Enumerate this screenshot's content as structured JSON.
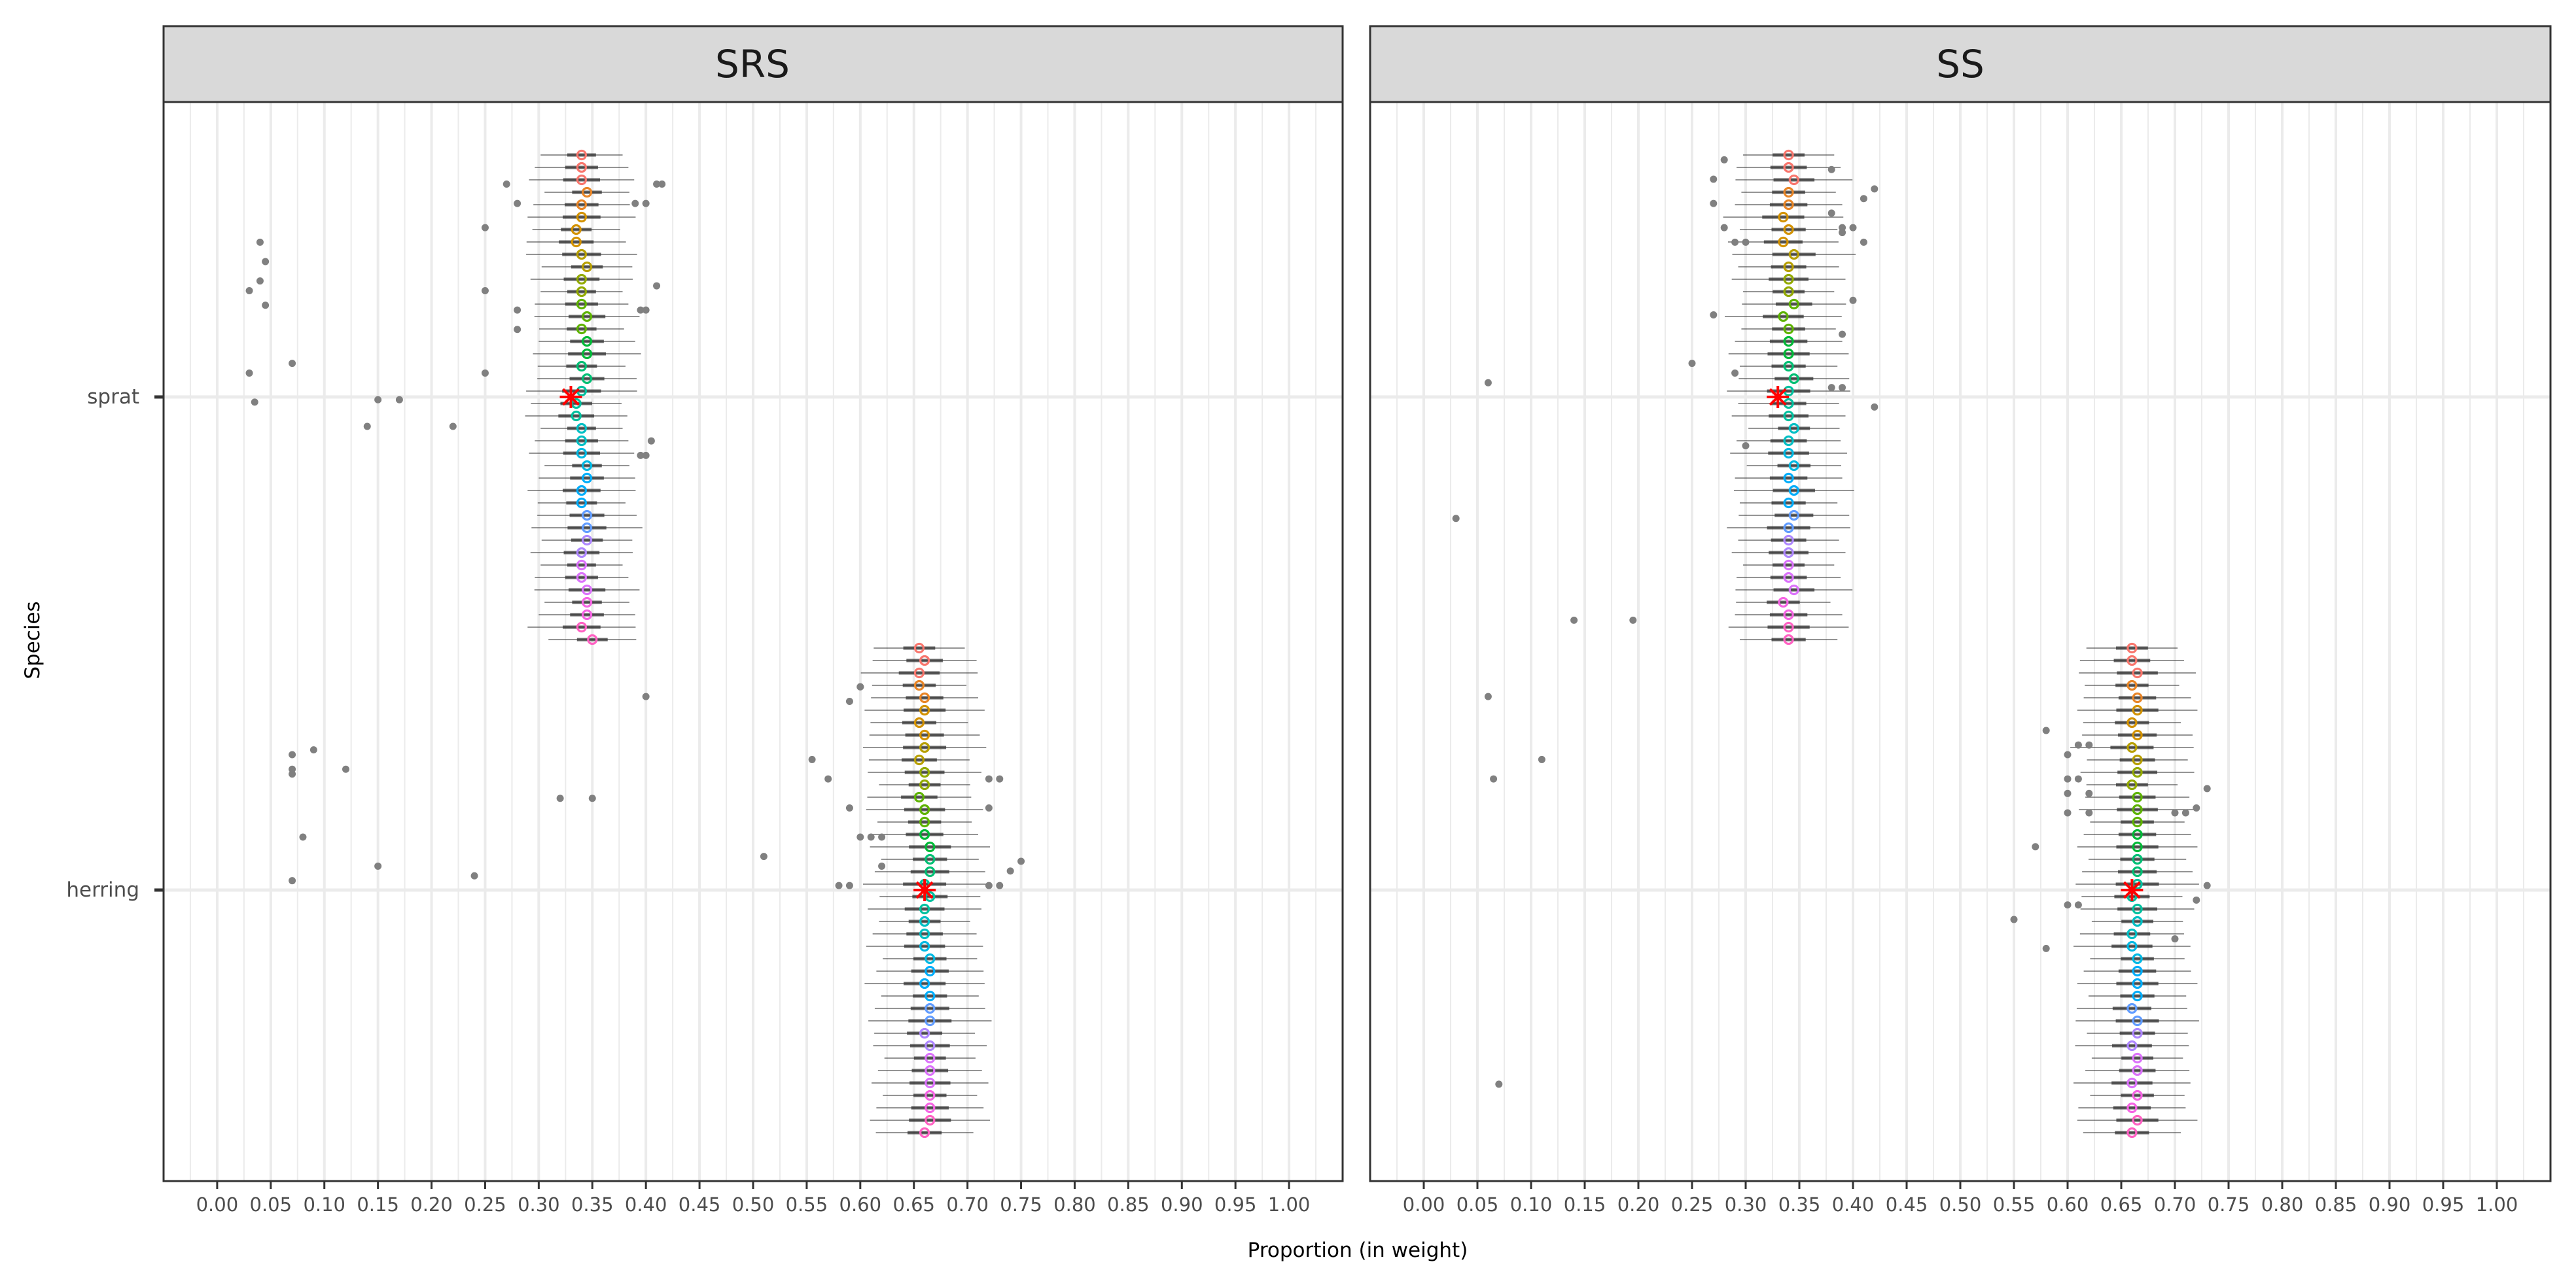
{
  "chart_data": {
    "type": "scatter",
    "xlabel": "Proportion (in weight)",
    "ylabel": "Species",
    "categories": [
      "sprat",
      "herring"
    ],
    "xlim": [
      -0.05,
      1.05
    ],
    "x_ticks": [
      "0.00",
      "0.05",
      "0.10",
      "0.15",
      "0.20",
      "0.25",
      "0.30",
      "0.35",
      "0.40",
      "0.45",
      "0.50",
      "0.55",
      "0.60",
      "0.65",
      "0.70",
      "0.75",
      "0.80",
      "0.85",
      "0.90",
      "0.95",
      "1.00"
    ],
    "grid": true,
    "legend": "none",
    "point_color": "#808080",
    "truth_color": "#ff0000",
    "whisker_color": "#333333",
    "panel_bg": "#ffffff",
    "strip_bg": "#d9d9d9",
    "grid_color": "#ebebeb",
    "run_colors": [
      "#F8766D",
      "#E88526",
      "#D39200",
      "#B79F00",
      "#93AA00",
      "#5EB300",
      "#00BA38",
      "#00BF74",
      "#00C19F",
      "#00BFC4",
      "#00B9E3",
      "#00ADFA",
      "#619CFF",
      "#AE87FF",
      "#DB72FB",
      "#F564E3",
      "#FF61C3"
    ],
    "facets": [
      {
        "title": "SRS",
        "true_values": {
          "sprat": 0.33,
          "herring": 0.66
        },
        "groups": [
          {
            "species": "sprat",
            "medians": [
              0.34,
              0.34,
              0.34,
              0.345,
              0.34,
              0.34,
              0.335,
              0.335,
              0.34,
              0.345,
              0.34,
              0.34,
              0.34,
              0.345,
              0.34,
              0.345,
              0.345,
              0.34,
              0.345,
              0.34,
              0.335,
              0.335,
              0.34,
              0.34,
              0.34,
              0.345,
              0.345,
              0.34,
              0.34,
              0.345,
              0.345,
              0.345,
              0.34,
              0.34,
              0.34,
              0.345,
              0.345,
              0.345,
              0.34,
              0.35
            ],
            "spread": 0.045,
            "outliers": [
              [
                0.04,
                0.18
              ],
              [
                0.045,
                0.22
              ],
              [
                0.04,
                0.26
              ],
              [
                0.03,
                0.28
              ],
              [
                0.045,
                0.31
              ],
              [
                0.03,
                0.45
              ],
              [
                0.07,
                0.43
              ],
              [
                0.035,
                0.51
              ],
              [
                0.15,
                0.505
              ],
              [
                0.17,
                0.505
              ],
              [
                0.14,
                0.56
              ],
              [
                0.22,
                0.56
              ],
              [
                0.25,
                0.15
              ],
              [
                0.25,
                0.28
              ],
              [
                0.25,
                0.45
              ],
              [
                0.27,
                0.06
              ],
              [
                0.28,
                0.1
              ],
              [
                0.28,
                0.32
              ],
              [
                0.28,
                0.36
              ],
              [
                0.41,
                0.06
              ],
              [
                0.415,
                0.06
              ],
              [
                0.4,
                0.1
              ],
              [
                0.39,
                0.1
              ],
              [
                0.41,
                0.27
              ],
              [
                0.4,
                0.32
              ],
              [
                0.395,
                0.32
              ],
              [
                0.405,
                0.59
              ],
              [
                0.4,
                0.62
              ],
              [
                0.395,
                0.62
              ]
            ]
          },
          {
            "species": "herring",
            "medians": [
              0.655,
              0.66,
              0.655,
              0.655,
              0.66,
              0.66,
              0.655,
              0.66,
              0.66,
              0.655,
              0.66,
              0.66,
              0.655,
              0.66,
              0.66,
              0.66,
              0.665,
              0.665,
              0.665,
              0.66,
              0.665,
              0.66,
              0.66,
              0.66,
              0.66,
              0.665,
              0.665,
              0.66,
              0.665,
              0.665,
              0.665,
              0.66,
              0.665,
              0.665,
              0.665,
              0.665,
              0.665,
              0.665,
              0.665,
              0.66
            ],
            "spread": 0.05,
            "outliers": [
              [
                0.6,
                0.08
              ],
              [
                0.6,
                0.08
              ],
              [
                0.59,
                0.11
              ],
              [
                0.555,
                0.23
              ],
              [
                0.51,
                0.43
              ],
              [
                0.57,
                0.27
              ],
              [
                0.59,
                0.33
              ],
              [
                0.6,
                0.39
              ],
              [
                0.61,
                0.39
              ],
              [
                0.62,
                0.39
              ],
              [
                0.58,
                0.49
              ],
              [
                0.59,
                0.49
              ],
              [
                0.62,
                0.45
              ],
              [
                0.73,
                0.27
              ],
              [
                0.72,
                0.27
              ],
              [
                0.72,
                0.33
              ],
              [
                0.72,
                0.49
              ],
              [
                0.75,
                0.44
              ],
              [
                0.74,
                0.46
              ],
              [
                0.73,
                0.49
              ],
              [
                0.08,
                0.39
              ],
              [
                0.07,
                0.26
              ],
              [
                0.07,
                0.25
              ],
              [
                0.12,
                0.25
              ],
              [
                0.07,
                0.22
              ],
              [
                0.09,
                0.21
              ],
              [
                0.15,
                0.45
              ],
              [
                0.07,
                0.48
              ],
              [
                0.24,
                0.47
              ],
              [
                0.32,
                0.31
              ],
              [
                0.35,
                0.31
              ],
              [
                0.4,
                0.1
              ]
            ]
          }
        ]
      },
      {
        "title": "SS",
        "true_values": {
          "sprat": 0.33,
          "herring": 0.66
        },
        "groups": [
          {
            "species": "sprat",
            "medians": [
              0.34,
              0.34,
              0.345,
              0.34,
              0.34,
              0.335,
              0.34,
              0.335,
              0.345,
              0.34,
              0.34,
              0.34,
              0.345,
              0.335,
              0.34,
              0.34,
              0.34,
              0.34,
              0.345,
              0.34,
              0.34,
              0.34,
              0.345,
              0.34,
              0.34,
              0.345,
              0.34,
              0.345,
              0.34,
              0.345,
              0.34,
              0.34,
              0.34,
              0.34,
              0.34,
              0.345,
              0.335,
              0.34,
              0.34,
              0.34
            ],
            "spread": 0.05,
            "outliers": [
              [
                0.28,
                0.01
              ],
              [
                0.38,
                0.03
              ],
              [
                0.27,
                0.05
              ],
              [
                0.42,
                0.07
              ],
              [
                0.41,
                0.09
              ],
              [
                0.4,
                0.15
              ],
              [
                0.39,
                0.15
              ],
              [
                0.27,
                0.1
              ],
              [
                0.28,
                0.15
              ],
              [
                0.38,
                0.12
              ],
              [
                0.29,
                0.18
              ],
              [
                0.3,
                0.18
              ],
              [
                0.41,
                0.18
              ],
              [
                0.39,
                0.16
              ],
              [
                0.4,
                0.3
              ],
              [
                0.27,
                0.33
              ],
              [
                0.39,
                0.37
              ],
              [
                0.25,
                0.43
              ],
              [
                0.29,
                0.45
              ],
              [
                0.42,
                0.52
              ],
              [
                0.3,
                0.6
              ],
              [
                0.38,
                0.48
              ],
              [
                0.39,
                0.48
              ],
              [
                0.14,
                0.96
              ],
              [
                0.195,
                0.96
              ],
              [
                0.03,
                0.75
              ],
              [
                0.06,
                0.47
              ]
            ]
          },
          {
            "species": "herring",
            "medians": [
              0.66,
              0.66,
              0.665,
              0.66,
              0.665,
              0.665,
              0.66,
              0.665,
              0.66,
              0.665,
              0.665,
              0.66,
              0.665,
              0.665,
              0.665,
              0.665,
              0.665,
              0.665,
              0.665,
              0.665,
              0.66,
              0.665,
              0.665,
              0.66,
              0.66,
              0.665,
              0.665,
              0.665,
              0.665,
              0.66,
              0.665,
              0.665,
              0.66,
              0.665,
              0.665,
              0.66,
              0.665,
              0.66,
              0.665,
              0.66
            ],
            "spread": 0.05,
            "outliers": [
              [
                0.58,
                0.17
              ],
              [
                0.6,
                0.22
              ],
              [
                0.61,
                0.2
              ],
              [
                0.62,
                0.2
              ],
              [
                0.6,
                0.3
              ],
              [
                0.62,
                0.3
              ],
              [
                0.6,
                0.27
              ],
              [
                0.61,
                0.27
              ],
              [
                0.6,
                0.34
              ],
              [
                0.62,
                0.34
              ],
              [
                0.57,
                0.41
              ],
              [
                0.6,
                0.53
              ],
              [
                0.61,
                0.53
              ],
              [
                0.58,
                0.62
              ],
              [
                0.7,
                0.34
              ],
              [
                0.71,
                0.34
              ],
              [
                0.72,
                0.33
              ],
              [
                0.73,
                0.49
              ],
              [
                0.72,
                0.52
              ],
              [
                0.7,
                0.6
              ],
              [
                0.73,
                0.29
              ],
              [
                0.07,
                0.9
              ],
              [
                0.065,
                0.27
              ],
              [
                0.11,
                0.23
              ],
              [
                0.06,
                0.1
              ],
              [
                0.55,
                0.56
              ]
            ]
          }
        ]
      }
    ]
  }
}
